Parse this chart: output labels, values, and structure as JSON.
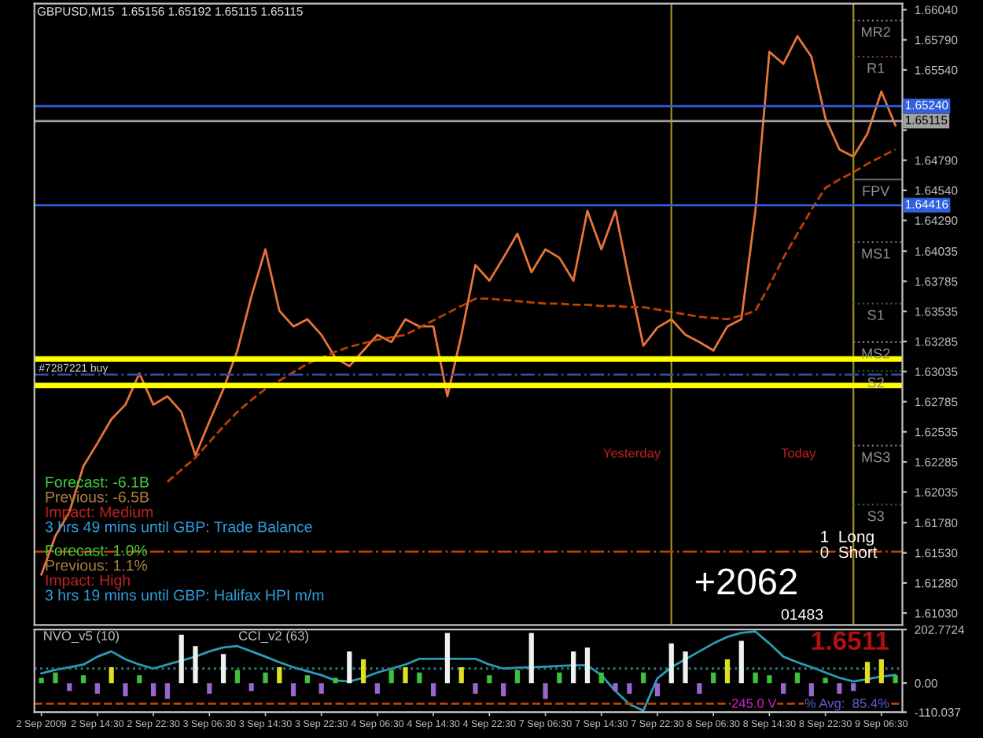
{
  "chart_data": [
    {
      "type": "line",
      "title": "GBPUSD,M15  1.65156 1.65192 1.65115 1.65115",
      "tick_labels": "y",
      "legend": false,
      "grid": false,
      "categories": [
        null,
        null,
        null,
        null,
        null,
        null,
        null,
        null,
        null,
        null,
        null,
        null,
        null,
        null,
        null,
        null,
        null,
        null,
        null,
        null,
        null,
        null,
        null,
        null,
        null,
        null,
        null,
        null,
        null,
        null,
        null,
        null,
        null,
        null,
        null,
        null,
        null,
        null,
        null,
        null,
        null,
        null,
        null,
        null,
        null,
        null,
        null,
        null,
        null,
        null,
        null,
        null,
        null,
        null,
        null,
        null,
        null,
        null,
        null,
        null,
        null,
        null
      ],
      "series": [
        {
          "color": "#e8743b",
          "values": [
            1.6135,
            1.6167,
            1.6187,
            1.6225,
            1.6244,
            1.6264,
            1.6276,
            1.6302,
            1.6276,
            1.6283,
            1.627,
            1.6234,
            1.6262,
            1.6289,
            1.6321,
            1.6366,
            1.6405,
            1.6354,
            1.6341,
            1.6347,
            1.6334,
            1.6315,
            1.6308,
            1.6321,
            1.6334,
            1.6328,
            1.6347,
            1.6341,
            1.6341,
            1.6283,
            1.6334,
            1.6392,
            1.6379,
            1.6398,
            1.6418,
            1.6386,
            1.6405,
            1.6398,
            1.6379,
            1.6437,
            1.6405,
            1.6437,
            1.6379,
            1.6325,
            1.634,
            1.6347,
            1.6334,
            1.6328,
            1.6321,
            1.6341,
            1.6347,
            1.6437,
            1.6569,
            1.6559,
            1.6582,
            1.6565,
            1.6514,
            1.6488,
            1.6482,
            1.6501,
            1.6536,
            1.6508
          ]
        },
        {
          "color": "#c04000",
          "line_style": "dashed",
          "values": [
            null,
            null,
            null,
            null,
            null,
            null,
            null,
            null,
            null,
            1.6212,
            1.6222,
            1.6232,
            1.6245,
            1.6258,
            1.627,
            1.628,
            1.6289,
            1.6296,
            1.6303,
            1.631,
            1.6315,
            1.632,
            1.6324,
            1.6327,
            1.633,
            1.6332,
            1.6334,
            1.634,
            1.6346,
            1.6352,
            1.6358,
            1.6364,
            1.6364,
            1.6363,
            1.6362,
            1.6361,
            1.636,
            1.636,
            1.6359,
            1.6359,
            1.6358,
            1.6358,
            1.6357,
            1.6357,
            1.6355,
            1.6353,
            1.6351,
            1.6349,
            1.6348,
            1.6347,
            1.635,
            1.6354,
            1.6375,
            1.6398,
            1.6418,
            1.6438,
            1.6456,
            1.6463,
            1.6469,
            1.6476,
            1.6482,
            1.6488
          ]
        }
      ],
      "ylim": [
        1.6093,
        1.6609
      ],
      "yticks": [
        {
          "value": 1.6604,
          "label": "1.66040"
        },
        {
          "value": 1.6579,
          "label": "1.65790"
        },
        {
          "value": 1.6554,
          "label": "1.65540"
        },
        {
          "value": 1.6529,
          "label": null
        },
        {
          "value": 1.6504,
          "label": null
        },
        {
          "value": 1.6479,
          "label": "1.64790"
        },
        {
          "value": 1.6454,
          "label": "1.64540"
        },
        {
          "value": 1.6429,
          "label": "1.64290"
        },
        {
          "value": 1.64035,
          "label": "1.64035"
        },
        {
          "value": 1.63785,
          "label": "1.63785"
        },
        {
          "value": 1.63535,
          "label": "1.63535"
        },
        {
          "value": 1.63285,
          "label": "1.63285"
        },
        {
          "value": 1.63035,
          "label": "1.63035"
        },
        {
          "value": 1.62785,
          "label": "1.62785"
        },
        {
          "value": 1.62535,
          "label": "1.62535"
        },
        {
          "value": 1.62285,
          "label": "1.62285"
        },
        {
          "value": 1.62035,
          "label": "1.62035"
        },
        {
          "value": 1.6178,
          "label": "1.61780"
        },
        {
          "value": 1.6153,
          "label": "1.61530"
        },
        {
          "value": 1.6128,
          "label": "1.61280"
        },
        {
          "value": 1.6103,
          "label": "1.61030"
        }
      ],
      "ref_lines": [
        {
          "axis": "y",
          "value": 1.6524,
          "label": "1.65240",
          "color": "#3060e0",
          "line_style": "solid"
        },
        {
          "axis": "y",
          "value": 1.64416,
          "label": "1.64416",
          "color": "#3060e0",
          "line_style": "solid"
        },
        {
          "axis": "y",
          "value": 1.65115,
          "label": "1.65115",
          "color": "#a0a0a0",
          "line_style": "solid"
        },
        {
          "axis": "y",
          "value": 1.6301,
          "color": "#3050a0",
          "line_style": "dashdot"
        },
        {
          "axis": "y",
          "value": 1.6154,
          "color": "#c04000",
          "line_style": "dashdot"
        },
        {
          "axis": "y",
          "value": 1.6314,
          "label": "#7287221 buy",
          "color": "#ffff00",
          "line_style": "solid"
        },
        {
          "axis": "y",
          "value": 1.6292,
          "color": "#ffff00",
          "line_style": "solid"
        },
        {
          "axis": "y",
          "value": 1.6595,
          "label": "MR2",
          "color": "#808080",
          "line_style": "dotted"
        },
        {
          "axis": "y",
          "value": 1.6565,
          "label": "R1",
          "color": "#804020",
          "line_style": "dotted"
        },
        {
          "axis": "y",
          "value": 1.6463,
          "label": "FPV",
          "color": "#606060",
          "line_style": "solid"
        },
        {
          "axis": "y",
          "value": 1.6411,
          "label": "MS1",
          "color": "#808080",
          "line_style": "dotted"
        },
        {
          "axis": "y",
          "value": 1.636,
          "label": "S1",
          "color": "#206040",
          "line_style": "dotted"
        },
        {
          "axis": "y",
          "value": 1.6328,
          "label": "MS2",
          "color": "#808080",
          "line_style": "dotted"
        },
        {
          "axis": "y",
          "value": 1.6304,
          "label": "S2",
          "color": "#206040",
          "line_style": "dotted"
        },
        {
          "axis": "y",
          "value": 1.6242,
          "label": "MS3",
          "color": "#808080",
          "line_style": "dotted"
        },
        {
          "axis": "y",
          "value": 1.6193,
          "label": "S3",
          "color": "#206040",
          "line_style": "dotted"
        }
      ],
      "annotations": [
        "Forecast: -6.1B",
        "Previous: -6.5B",
        "Impact: Medium",
        "3 hrs 49 mins until GBP: Trade Balance",
        "Forecast: 1.0%",
        "Previous: 1.1%",
        "Impact: High",
        "3 hrs 19 mins until GBP: Halifax HPI m/m",
        "1  Long",
        "0  Short",
        "+2062",
        "01483",
        "Yesterday",
        "Today"
      ]
    },
    {
      "type": "bar",
      "legend": false,
      "grid": false,
      "categories": [
        "2 Sep 2009",
        null,
        null,
        null,
        "2 Sep 14:30",
        null,
        null,
        null,
        "2 Sep 22:30",
        null,
        null,
        null,
        "3 Sep 06:30",
        null,
        null,
        null,
        "3 Sep 14:30",
        null,
        null,
        null,
        "3 Sep 22:30",
        null,
        null,
        null,
        "4 Sep 06:30",
        null,
        null,
        null,
        "4 Sep 14:30",
        null,
        null,
        null,
        "4 Sep 22:30",
        null,
        null,
        null,
        "7 Sep 06:30",
        null,
        null,
        null,
        "7 Sep 14:30",
        null,
        null,
        null,
        "7 Sep 22:30",
        null,
        null,
        null,
        "8 Sep 06:30",
        null,
        null,
        null,
        "8 Sep 14:30",
        null,
        null,
        null,
        "8 Sep 22:30",
        null,
        null,
        null,
        "9 Sep 06:30",
        null
      ],
      "series": [
        {
          "values": [
            20,
            40,
            -30,
            30,
            -40,
            60,
            -50,
            30,
            -50,
            -60,
            183,
            140,
            -40,
            110,
            50,
            -30,
            40,
            60,
            -50,
            30,
            -40,
            20,
            120,
            90,
            -40,
            50,
            60,
            40,
            -50,
            190,
            60,
            -40,
            30,
            -50,
            50,
            190,
            -60,
            40,
            120,
            135,
            40,
            -30,
            -40,
            40,
            -50,
            150,
            120,
            -40,
            40,
            90,
            160,
            40,
            30,
            -40,
            40,
            -50,
            20,
            -40,
            -30,
            80,
            90,
            30
          ],
          "colors": [
            "#40c040",
            "#40c040",
            "#9966cc",
            "#40c040",
            "#9966cc",
            "#e0e020",
            "#9966cc",
            "#40c040",
            "#9966cc",
            "#9966cc",
            "#f0f0f0",
            "#f0f0f0",
            "#9966cc",
            "#f0f0f0",
            "#40c040",
            "#9966cc",
            "#40c040",
            "#e0e020",
            "#9966cc",
            "#40c040",
            "#9966cc",
            "#40c040",
            "#f0f0f0",
            "#e0e020",
            "#9966cc",
            "#40c040",
            "#e0e020",
            "#40c040",
            "#9966cc",
            "#f0f0f0",
            "#e0e020",
            "#9966cc",
            "#40c040",
            "#9966cc",
            "#40c040",
            "#f0f0f0",
            "#9966cc",
            "#40c040",
            "#f0f0f0",
            "#f0f0f0",
            "#40c040",
            "#9966cc",
            "#9966cc",
            "#40c040",
            "#9966cc",
            "#f0f0f0",
            "#f0f0f0",
            "#9966cc",
            "#40c040",
            "#e0e020",
            "#f0f0f0",
            "#40c040",
            "#40c040",
            "#9966cc",
            "#40c040",
            "#9966cc",
            "#40c040",
            "#9966cc",
            "#9966cc",
            "#e0e020",
            "#e0e020",
            "#40c040"
          ]
        },
        {
          "type": "line",
          "color": "#2a9db5",
          "values": [
            37,
            50,
            60,
            70,
            100,
            120,
            90,
            70,
            55,
            70,
            85,
            100,
            120,
            135,
            140,
            120,
            100,
            79,
            60,
            45,
            30,
            10,
            6,
            20,
            40,
            55,
            70,
            92,
            92,
            92,
            92,
            92,
            70,
            55,
            58,
            60,
            62,
            65,
            67,
            67,
            30,
            -30,
            -80,
            -104,
            18,
            60,
            90,
            120,
            150,
            175,
            190,
            195,
            150,
            100,
            79,
            60,
            40,
            20,
            6,
            15,
            25,
            31
          ]
        }
      ],
      "ylim": [
        -110.037,
        202.7724
      ],
      "yticks": [
        202.7724,
        {
          "value": 0,
          "label": "0.00"
        },
        -110.037
      ],
      "ref_lines": [
        {
          "axis": "y",
          "value": 55,
          "color": "#2a8080",
          "line_style": "dotted"
        },
        {
          "axis": "y",
          "value": -78,
          "color": "#c04000",
          "line_style": "dashed"
        }
      ],
      "annotations": [
        "NVO_v5 (10)",
        "CCI_v2 (63)",
        "1.6511",
        "245.0 V",
        "% Avg:  85.4%"
      ]
    }
  ]
}
